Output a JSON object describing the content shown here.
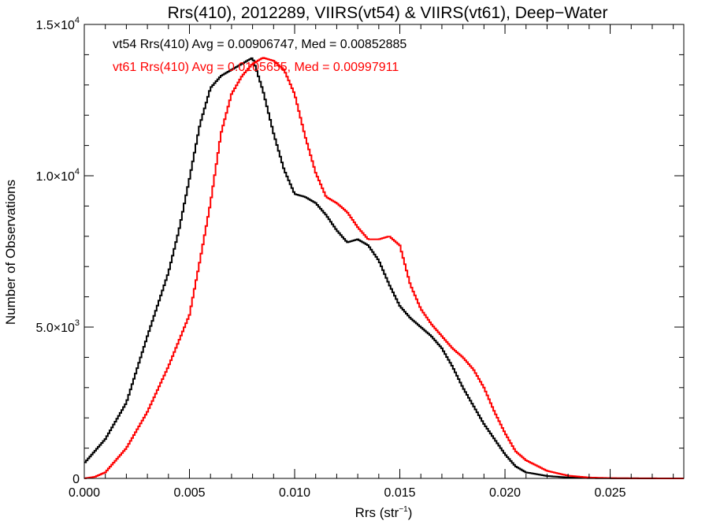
{
  "chart_data": {
    "type": "line",
    "title": "Rrs(410), 2012289, VIIRS(vt54) & VIIRS(vt61), Deep−Water",
    "xlabel_main": "Rrs (str",
    "xlabel_sup": "−1",
    "xlabel_close": ")",
    "ylabel": "Number of Observations",
    "xlim": [
      0.0,
      0.0285
    ],
    "ylim": [
      0,
      15000
    ],
    "x_ticks": [
      {
        "value": 0.0,
        "label": "0.000"
      },
      {
        "value": 0.005,
        "label": "0.005"
      },
      {
        "value": 0.01,
        "label": "0.010"
      },
      {
        "value": 0.015,
        "label": "0.015"
      },
      {
        "value": 0.02,
        "label": "0.020"
      },
      {
        "value": 0.025,
        "label": "0.025"
      }
    ],
    "y_ticks": [
      {
        "value": 0,
        "mant": "0",
        "exp": ""
      },
      {
        "value": 5000,
        "mant": "5.0×10",
        "exp": "3"
      },
      {
        "value": 10000,
        "mant": "1.0×10",
        "exp": "4"
      },
      {
        "value": 15000,
        "mant": "1.5×10",
        "exp": "4"
      }
    ],
    "annotations": [
      {
        "text": "vt54 Rrs(410) Avg = 0.00906747, Med = 0.00852885",
        "color": "#000000"
      },
      {
        "text": "vt61 Rrs(410) Avg = 0.0105655, Med = 0.00997911",
        "color": "#ff0000"
      }
    ],
    "series": [
      {
        "color": "#000000",
        "x": [
          0.0,
          0.001,
          0.002,
          0.003,
          0.004,
          0.0045,
          0.005,
          0.0055,
          0.006,
          0.0065,
          0.007,
          0.0075,
          0.008,
          0.0085,
          0.009,
          0.0095,
          0.01,
          0.0105,
          0.011,
          0.0115,
          0.012,
          0.0125,
          0.013,
          0.0135,
          0.014,
          0.0145,
          0.015,
          0.0155,
          0.016,
          0.0165,
          0.017,
          0.0175,
          0.018,
          0.0185,
          0.019,
          0.0195,
          0.02,
          0.0205,
          0.021,
          0.022,
          0.023,
          0.024,
          0.025,
          0.026,
          0.027,
          0.0285
        ],
        "y": [
          500,
          1300,
          2500,
          4700,
          6800,
          8200,
          9900,
          11700,
          12900,
          13300,
          13500,
          13700,
          13900,
          12800,
          11400,
          10200,
          9400,
          9300,
          9100,
          8700,
          8200,
          7800,
          7900,
          7700,
          7200,
          6400,
          5700,
          5300,
          5000,
          4700,
          4300,
          3700,
          3000,
          2400,
          1800,
          1300,
          800,
          400,
          200,
          80,
          30,
          10,
          5,
          2,
          1,
          0
        ]
      },
      {
        "color": "#ff0000",
        "x": [
          0.0,
          0.0005,
          0.001,
          0.0015,
          0.002,
          0.003,
          0.004,
          0.005,
          0.0055,
          0.006,
          0.0065,
          0.007,
          0.0075,
          0.008,
          0.0085,
          0.009,
          0.0095,
          0.01,
          0.0105,
          0.011,
          0.0115,
          0.012,
          0.0125,
          0.013,
          0.0135,
          0.014,
          0.0145,
          0.015,
          0.0155,
          0.016,
          0.0165,
          0.017,
          0.0175,
          0.018,
          0.0185,
          0.019,
          0.0195,
          0.02,
          0.0205,
          0.021,
          0.022,
          0.023,
          0.024,
          0.025,
          0.026,
          0.027,
          0.0285
        ],
        "y": [
          0,
          50,
          200,
          600,
          1000,
          2200,
          3700,
          5400,
          7200,
          9100,
          11400,
          12700,
          13300,
          13700,
          13900,
          13800,
          13500,
          12700,
          11300,
          10100,
          9300,
          9100,
          8800,
          8300,
          7900,
          7900,
          8000,
          7700,
          6400,
          5600,
          5100,
          4700,
          4300,
          4000,
          3600,
          3000,
          2200,
          1500,
          900,
          600,
          250,
          90,
          30,
          10,
          4,
          2,
          0
        ]
      }
    ]
  }
}
